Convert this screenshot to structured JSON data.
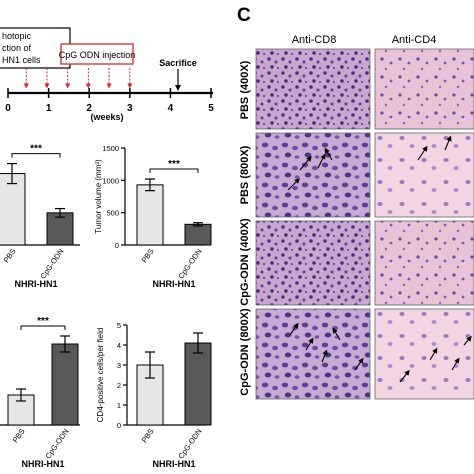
{
  "panel_letter": "C",
  "timeline": {
    "orthotopic_label": [
      "hotopic",
      "ction of",
      "HN1 cells"
    ],
    "injection_label": "CpG ODN injection",
    "sacrifice_label": "Sacrifice",
    "weeks_label": "(weeks)",
    "ticks": [
      "0",
      "1",
      "2",
      "3",
      "4",
      "5"
    ],
    "injection_arrow_count": 6,
    "accent_color": "#d9262c"
  },
  "micrographs": {
    "columns": [
      "Anti-CD8",
      "Anti-CD4"
    ],
    "rows": [
      "PBS (400X)",
      "PBS (800X)",
      "CpG-ODN (400X)",
      "CpG-ODN (800X)"
    ]
  },
  "chart_data": [
    {
      "type": "bar",
      "categories": [
        "PBS",
        "CpG-ODN"
      ],
      "values": [
        100,
        45
      ],
      "errors": [
        14,
        6
      ],
      "xlabel": "NHRI-HN1",
      "ylabel": "",
      "significance": "***"
    },
    {
      "type": "bar",
      "categories": [
        "PBS",
        "CpG-ODN"
      ],
      "values": [
        930,
        320
      ],
      "errors": [
        90,
        25
      ],
      "ylim": [
        0,
        1500
      ],
      "yticks": [
        "0",
        "500",
        "1000",
        "1500"
      ],
      "xlabel": "NHRI-HN1",
      "ylabel": "Tumor volume (mm³)",
      "significance": "***"
    },
    {
      "type": "bar",
      "categories": [
        "PBS",
        "CpG-ODN"
      ],
      "values": [
        30,
        81
      ],
      "errors": [
        6,
        8
      ],
      "xlabel": "NHRI-HN1",
      "ylabel": "",
      "significance": "***"
    },
    {
      "type": "bar",
      "categories": [
        "PBS",
        "CpG-ODN"
      ],
      "values": [
        3.0,
        4.1
      ],
      "errors": [
        0.65,
        0.5
      ],
      "ylim": [
        0,
        5
      ],
      "yticks": [
        "0",
        "1",
        "2",
        "3",
        "4",
        "5"
      ],
      "xlabel": "NHRI-HN1",
      "ylabel": "CD4-positive cells/per field"
    }
  ]
}
